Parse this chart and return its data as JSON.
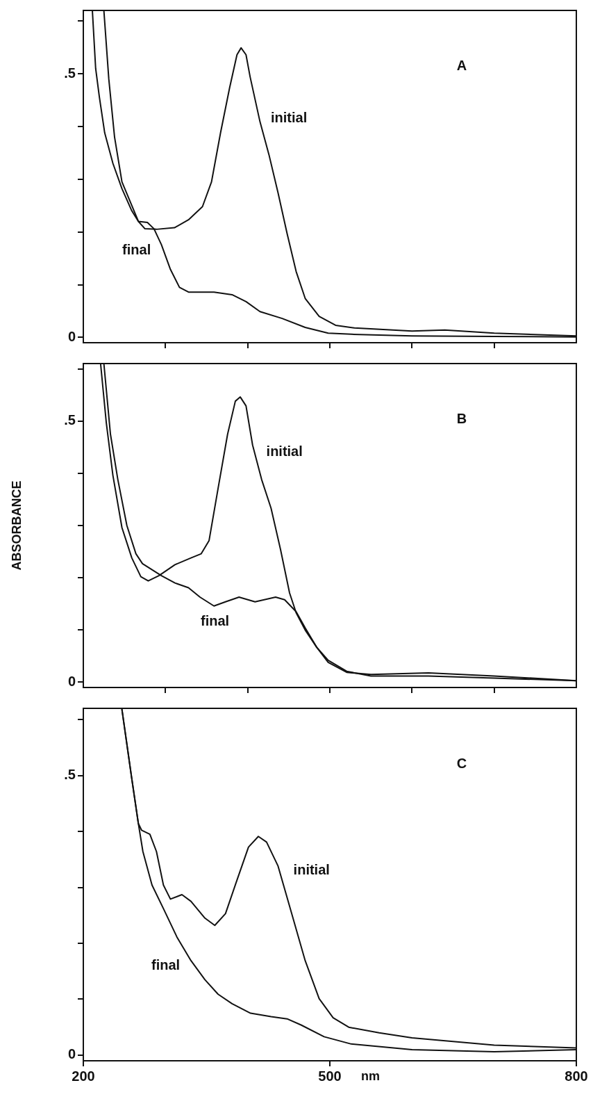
{
  "chart_data": [
    {
      "type": "line",
      "xlim": [
        200,
        800
      ],
      "ylim": [
        -0.01,
        0.62
      ],
      "tick_labels": "y",
      "grid": false,
      "legend": false,
      "marker": "none",
      "line_style": "solid",
      "xticks": [
        {
          "value": 300,
          "label": null
        },
        {
          "value": 400,
          "label": null
        },
        {
          "value": 500,
          "label": null
        },
        {
          "value": 600,
          "label": null
        },
        {
          "value": 700,
          "label": null
        }
      ],
      "yticks": [
        {
          "value": 0,
          "label": "0"
        },
        {
          "value": 0.1,
          "label": null
        },
        {
          "value": 0.2,
          "label": null
        },
        {
          "value": 0.3,
          "label": null
        },
        {
          "value": 0.4,
          "label": null
        },
        {
          "value": 0.5,
          "label": ".5"
        },
        {
          "value": 0.6,
          "label": null
        }
      ],
      "annotations": [
        "A"
      ],
      "series": [
        {
          "name": "initial",
          "color": "#111111",
          "x": [
            225,
            231,
            238,
            247,
            259,
            267,
            275,
            289,
            311,
            328,
            345,
            356,
            367,
            378,
            387,
            392,
            398,
            403,
            415,
            426,
            437,
            448,
            459,
            470,
            487,
            507,
            530,
            600,
            640,
            700,
            800
          ],
          "values": [
            0.62,
            0.49,
            0.38,
            0.295,
            0.25,
            0.22,
            0.206,
            0.205,
            0.208,
            0.223,
            0.248,
            0.295,
            0.388,
            0.473,
            0.536,
            0.549,
            0.536,
            0.494,
            0.409,
            0.346,
            0.274,
            0.197,
            0.125,
            0.074,
            0.04,
            0.023,
            0.018,
            0.012,
            0.014,
            0.008,
            0.003
          ]
        },
        {
          "name": "final",
          "color": "#111111",
          "x": [
            211,
            215,
            219.5,
            226,
            236,
            247,
            259,
            267,
            278,
            286,
            295,
            306,
            317,
            328,
            359,
            381,
            398,
            415,
            442,
            470,
            498,
            526,
            600,
            700,
            800
          ],
          "values": [
            0.62,
            0.51,
            0.456,
            0.388,
            0.33,
            0.282,
            0.24,
            0.22,
            0.218,
            0.206,
            0.176,
            0.129,
            0.095,
            0.086,
            0.086,
            0.081,
            0.068,
            0.049,
            0.036,
            0.019,
            0.008,
            0.006,
            0.003,
            0.002,
            0.001
          ]
        }
      ]
    },
    {
      "type": "line",
      "xlim": [
        200,
        800
      ],
      "ylim": [
        -0.01,
        0.61
      ],
      "tick_labels": "y",
      "grid": false,
      "legend": false,
      "marker": "none",
      "line_style": "solid",
      "ylabel": "ABSORBANCE",
      "xticks": [
        {
          "value": 300,
          "label": null
        },
        {
          "value": 400,
          "label": null
        },
        {
          "value": 500,
          "label": null
        },
        {
          "value": 600,
          "label": null
        },
        {
          "value": 700,
          "label": null
        }
      ],
      "yticks": [
        {
          "value": 0,
          "label": "0"
        },
        {
          "value": 0.1,
          "label": null
        },
        {
          "value": 0.2,
          "label": null
        },
        {
          "value": 0.3,
          "label": null
        },
        {
          "value": 0.4,
          "label": null
        },
        {
          "value": 0.5,
          "label": ".5"
        },
        {
          "value": 0.6,
          "label": null
        }
      ],
      "annotations": [
        "B"
      ],
      "series": [
        {
          "name": "initial",
          "color": "#111111",
          "x": [
            221,
            228,
            236,
            247,
            259,
            270,
            279,
            292,
            311.5,
            331,
            343.5,
            353,
            364,
            375.6,
            385,
            391,
            398,
            406,
            417,
            428.5,
            440,
            451,
            459,
            470,
            484,
            498,
            520.5,
            550,
            620,
            700,
            800
          ],
          "values": [
            0.61,
            0.496,
            0.396,
            0.296,
            0.238,
            0.202,
            0.194,
            0.204,
            0.225,
            0.238,
            0.246,
            0.271,
            0.371,
            0.475,
            0.538,
            0.546,
            0.529,
            0.454,
            0.388,
            0.333,
            0.254,
            0.171,
            0.133,
            0.1,
            0.067,
            0.042,
            0.021,
            0.012,
            0.012,
            0.008,
            0.003
          ]
        },
        {
          "name": "final",
          "color": "#111111",
          "x": [
            225,
            233,
            242,
            253,
            264,
            272,
            295,
            311.5,
            328,
            342,
            359,
            373,
            389.5,
            409,
            434,
            445,
            459,
            470,
            484,
            498,
            520.5,
            550,
            620,
            700,
            800
          ],
          "values": [
            0.61,
            0.475,
            0.388,
            0.3,
            0.246,
            0.227,
            0.204,
            0.19,
            0.181,
            0.163,
            0.146,
            0.154,
            0.163,
            0.154,
            0.163,
            0.158,
            0.135,
            0.104,
            0.067,
            0.038,
            0.019,
            0.015,
            0.018,
            0.012,
            0.003
          ]
        }
      ]
    },
    {
      "type": "line",
      "xlim": [
        200,
        800
      ],
      "ylim": [
        -0.01,
        0.62
      ],
      "grid": false,
      "legend": false,
      "marker": "none",
      "line_style": "solid",
      "xlabel": "nm",
      "xticks": [
        200,
        500,
        800
      ],
      "yticks": [
        {
          "value": 0,
          "label": "0"
        },
        {
          "value": 0.1,
          "label": null
        },
        {
          "value": 0.2,
          "label": null
        },
        {
          "value": 0.3,
          "label": null
        },
        {
          "value": 0.4,
          "label": null
        },
        {
          "value": 0.5,
          "label": ".5"
        },
        {
          "value": 0.6,
          "label": null
        }
      ],
      "annotations": [
        "C"
      ],
      "series": [
        {
          "name": "initial",
          "color": "#111111",
          "x": [
            247,
            258.5,
            267,
            271,
            281,
            289,
            297.5,
            306,
            320,
            331,
            348,
            360,
            373,
            387,
            401,
            413,
            423,
            437,
            453.6,
            470,
            487,
            504,
            523,
            560,
            600,
            700,
            800
          ],
          "values": [
            0.618,
            0.499,
            0.414,
            0.402,
            0.395,
            0.364,
            0.304,
            0.279,
            0.287,
            0.275,
            0.245,
            0.232,
            0.253,
            0.313,
            0.372,
            0.391,
            0.381,
            0.338,
            0.253,
            0.169,
            0.101,
            0.067,
            0.05,
            0.04,
            0.031,
            0.018,
            0.013
          ]
        },
        {
          "name": "final",
          "color": "#111111",
          "x": [
            247,
            258.5,
            267,
            272.5,
            283.6,
            297.5,
            314,
            331,
            348,
            364,
            381,
            403.5,
            428.5,
            448,
            465,
            493,
            526,
            600,
            700,
            800
          ],
          "values": [
            0.618,
            0.499,
            0.414,
            0.364,
            0.304,
            0.262,
            0.211,
            0.169,
            0.135,
            0.109,
            0.092,
            0.075,
            0.069,
            0.065,
            0.054,
            0.033,
            0.02,
            0.01,
            0.006,
            0.01
          ]
        }
      ]
    }
  ]
}
